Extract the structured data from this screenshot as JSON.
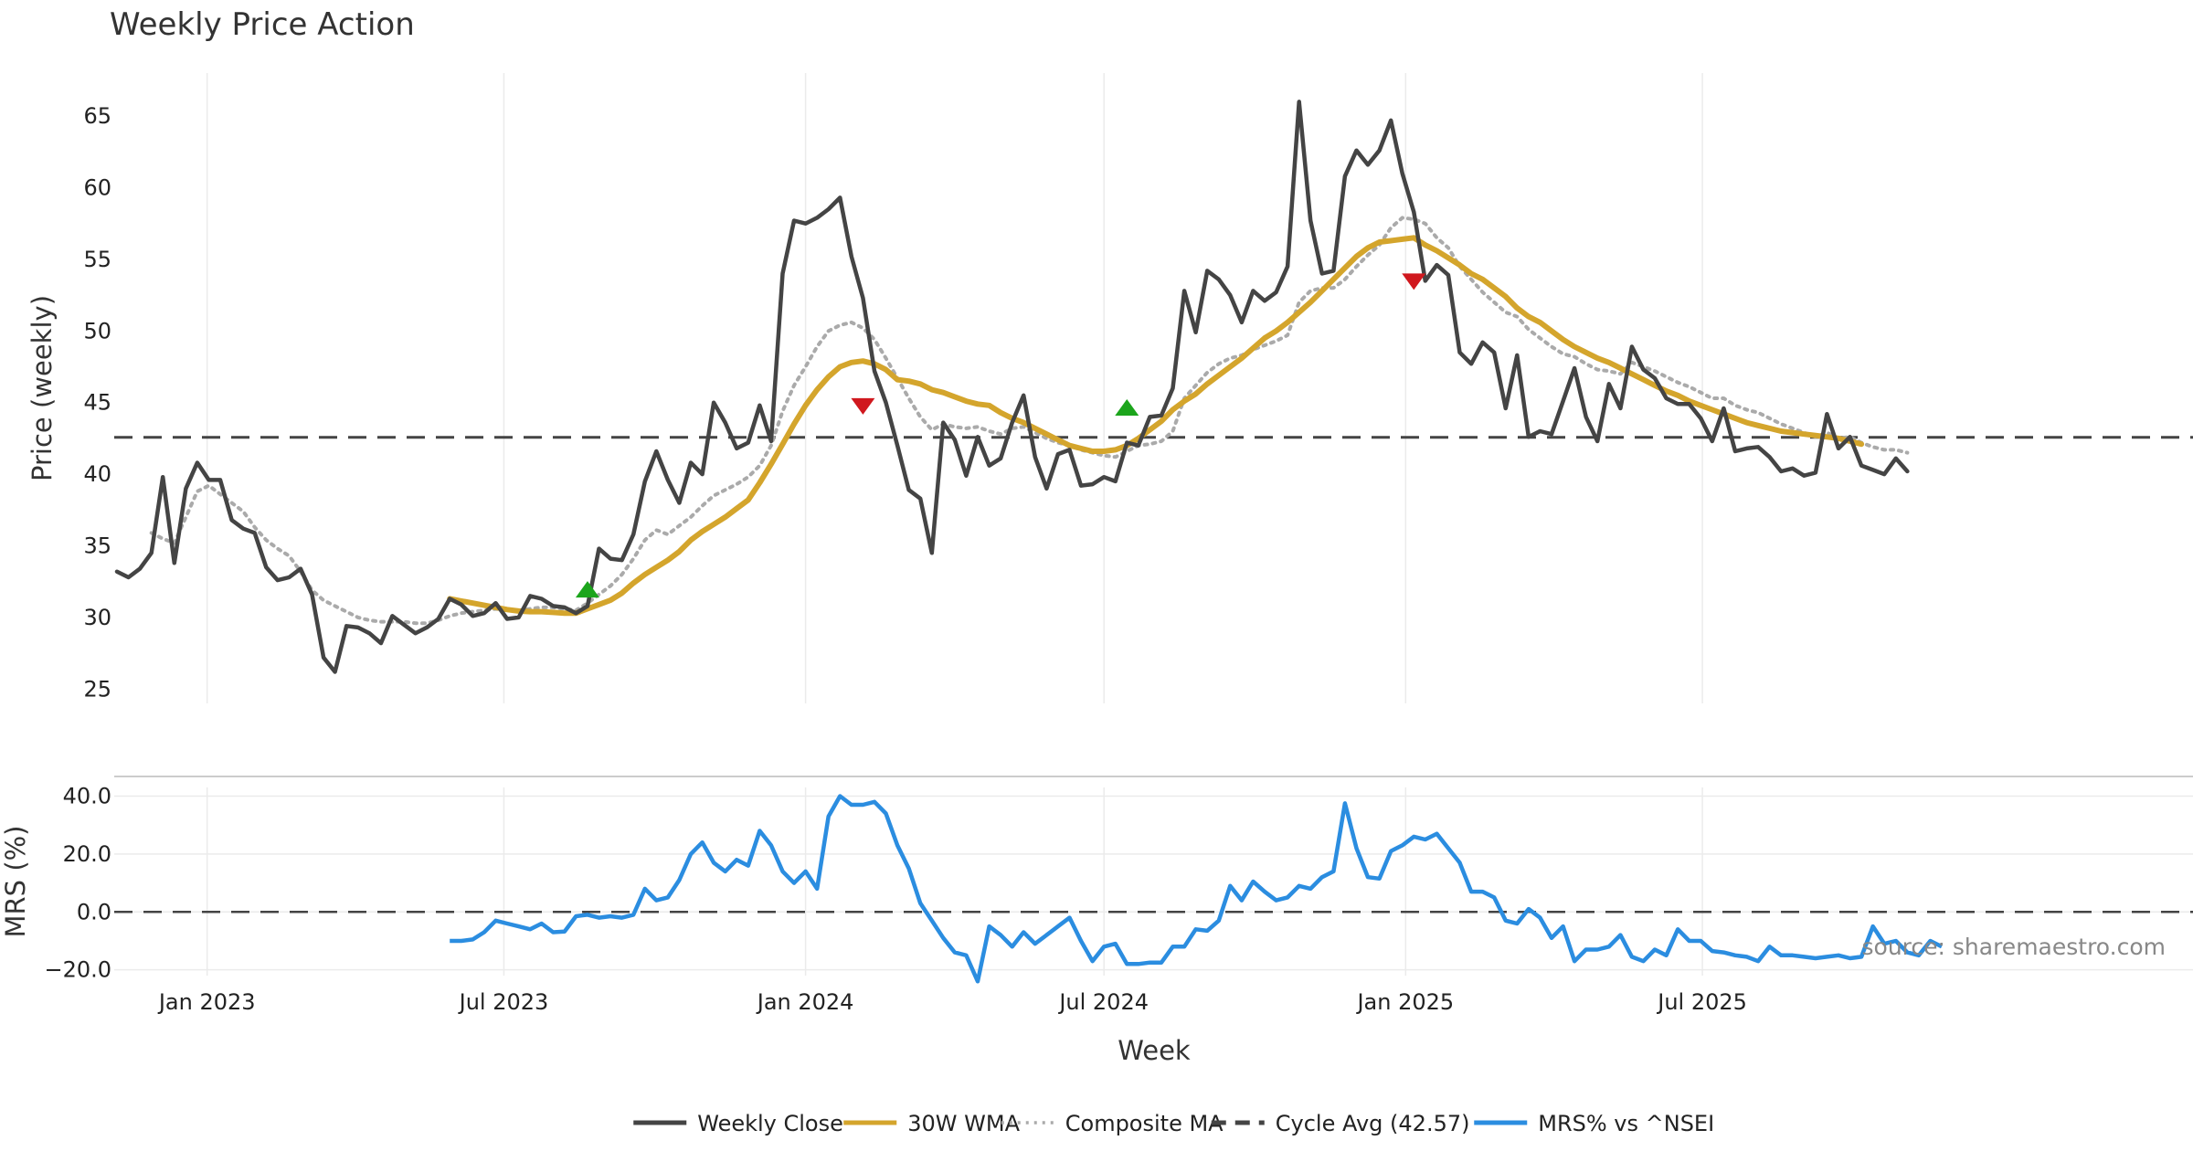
{
  "chart_data": {
    "type": "line",
    "title": "Weekly Price Action",
    "xlabel": "Week",
    "source_text": "source: sharemaestro.com",
    "x_ticks": [
      "Jan 2023",
      "Jul 2023",
      "Jan 2024",
      "Jul 2024",
      "Jan 2025",
      "Jul 2025"
    ],
    "x_start": "2022-11-07",
    "x_step_days": 7,
    "price_panel": {
      "ylabel": "Price (weekly)",
      "ylim": [
        24,
        68
      ],
      "yticks": [
        25,
        30,
        35,
        40,
        45,
        50,
        55,
        60,
        65
      ],
      "cycle_avg": 42.57,
      "series": [
        {
          "name": "Weekly Close",
          "color": "#444444",
          "style": "solid",
          "values": [
            33.2,
            32.8,
            33.4,
            34.5,
            39.8,
            33.8,
            39.0,
            40.8,
            39.6,
            39.6,
            36.8,
            36.2,
            35.9,
            33.5,
            32.6,
            32.8,
            33.4,
            31.6,
            27.2,
            26.2,
            29.4,
            29.3,
            28.9,
            28.2,
            30.1,
            29.5,
            28.9,
            29.3,
            29.9,
            31.3,
            30.9,
            30.1,
            30.3,
            31.0,
            29.9,
            30.0,
            31.5,
            31.3,
            30.8,
            30.7,
            30.3,
            30.8,
            34.8,
            34.1,
            34.0,
            35.8,
            39.5,
            41.6,
            39.6,
            38.0,
            40.8,
            40.0,
            45.0,
            43.6,
            41.8,
            42.2,
            44.8,
            42.3,
            54.0,
            57.7,
            57.5,
            57.9,
            58.5,
            59.3,
            55.2,
            52.3,
            47.2,
            45.0,
            42.0,
            38.9,
            38.3,
            34.5,
            43.6,
            42.4,
            39.9,
            42.6,
            40.6,
            41.1,
            43.6,
            45.5,
            41.2,
            39.0,
            41.4,
            41.7,
            39.2,
            39.3,
            39.8,
            39.5,
            42.2,
            42.0,
            44.0,
            44.1,
            46.0,
            52.8,
            49.9,
            54.2,
            53.6,
            52.5,
            50.6,
            52.8,
            52.1,
            52.7,
            54.5,
            66.0,
            57.7,
            54.0,
            54.2,
            60.8,
            62.6,
            61.6,
            62.6,
            64.7,
            61.0,
            58.3,
            53.5,
            54.6,
            53.9,
            48.5,
            47.7,
            49.2,
            48.5,
            44.6,
            48.3,
            42.6,
            43.0,
            42.8,
            45.1,
            47.4,
            44.0,
            42.3,
            46.3,
            44.6,
            48.9,
            47.3,
            46.7,
            45.3,
            44.9,
            44.9,
            43.9,
            42.3,
            44.6,
            41.6,
            41.8,
            41.9,
            41.2,
            40.2,
            40.4,
            39.9,
            40.1,
            44.2,
            41.8,
            42.6,
            40.6,
            40.3,
            40.0,
            41.1,
            40.2
          ]
        },
        {
          "name": "30W WMA",
          "color": "#d4a52c",
          "style": "solid",
          "values": [
            null,
            null,
            null,
            null,
            null,
            null,
            null,
            null,
            null,
            null,
            null,
            null,
            null,
            null,
            null,
            null,
            null,
            null,
            null,
            null,
            null,
            null,
            null,
            null,
            null,
            null,
            null,
            null,
            null,
            31.3,
            31.15,
            31.0,
            30.85,
            30.7,
            30.55,
            30.45,
            30.4,
            30.4,
            30.35,
            30.3,
            30.3,
            30.6,
            30.9,
            31.2,
            31.7,
            32.4,
            33.0,
            33.5,
            34.0,
            34.6,
            35.4,
            36.0,
            36.5,
            37.0,
            37.6,
            38.2,
            39.4,
            40.7,
            42.1,
            43.5,
            44.8,
            45.9,
            46.8,
            47.5,
            47.8,
            47.9,
            47.7,
            47.3,
            46.6,
            46.5,
            46.3,
            45.9,
            45.7,
            45.4,
            45.1,
            44.9,
            44.8,
            44.3,
            43.9,
            43.6,
            43.2,
            42.8,
            42.4,
            42.0,
            41.8,
            41.6,
            41.6,
            41.7,
            42.0,
            42.5,
            43.1,
            43.7,
            44.5,
            45.1,
            45.6,
            46.3,
            46.9,
            47.5,
            48.1,
            48.8,
            49.5,
            50.0,
            50.6,
            51.3,
            52.0,
            52.8,
            53.6,
            54.4,
            55.2,
            55.8,
            56.2,
            56.3,
            56.4,
            56.5,
            56.0,
            55.6,
            55.1,
            54.6,
            54.0,
            53.6,
            53.0,
            52.4,
            51.6,
            51.0,
            50.6,
            50.0,
            49.4,
            48.9,
            48.5,
            48.1,
            47.8,
            47.4,
            47.0,
            46.6,
            46.2,
            45.8,
            45.5,
            45.1,
            44.8,
            44.5,
            44.2,
            43.9,
            43.6,
            43.4,
            43.2,
            43.0,
            42.9,
            42.8,
            42.7,
            42.6,
            42.5,
            42.3,
            42.1
          ]
        },
        {
          "name": "Composite MA",
          "color": "#aaaaaa",
          "style": "dotted",
          "values": [
            null,
            null,
            null,
            35.9,
            35.5,
            35.2,
            37.0,
            38.8,
            39.2,
            38.6,
            38.0,
            37.4,
            36.3,
            35.4,
            34.8,
            34.3,
            33.2,
            31.9,
            31.2,
            30.8,
            30.4,
            30.0,
            29.8,
            29.7,
            29.7,
            29.7,
            29.6,
            29.6,
            29.8,
            30.1,
            30.3,
            30.4,
            30.5,
            30.6,
            30.5,
            30.5,
            30.6,
            30.7,
            30.7,
            30.6,
            30.5,
            31.0,
            31.6,
            32.2,
            33.0,
            34.1,
            35.4,
            36.1,
            35.8,
            36.4,
            37.0,
            37.8,
            38.5,
            38.9,
            39.3,
            39.8,
            40.6,
            42.0,
            44.4,
            46.2,
            47.5,
            48.9,
            50.0,
            50.4,
            50.6,
            50.2,
            49.4,
            48.1,
            46.7,
            45.3,
            44.0,
            43.1,
            43.5,
            43.3,
            43.2,
            43.3,
            43.0,
            42.8,
            43.2,
            43.3,
            42.9,
            42.5,
            42.2,
            42.0,
            41.7,
            41.5,
            41.3,
            41.2,
            41.6,
            42.0,
            42.1,
            42.3,
            43.0,
            45.3,
            46.2,
            47.1,
            47.7,
            48.1,
            48.3,
            48.7,
            49.0,
            49.3,
            49.7,
            52.0,
            52.8,
            53.0,
            53.0,
            53.6,
            54.5,
            55.3,
            56.0,
            57.2,
            57.9,
            57.8,
            57.5,
            56.5,
            55.8,
            54.5,
            53.6,
            52.7,
            52.0,
            51.3,
            51.0,
            50.1,
            49.5,
            48.9,
            48.4,
            48.2,
            47.7,
            47.3,
            47.2,
            47.0,
            47.8,
            47.5,
            47.2,
            46.8,
            46.4,
            46.1,
            45.7,
            45.3,
            45.3,
            44.8,
            44.5,
            44.3,
            43.9,
            43.5,
            43.2,
            42.9,
            42.6,
            42.9,
            42.5,
            42.6,
            42.2,
            41.9,
            41.7,
            41.7,
            41.5
          ]
        }
      ],
      "cycle_avg_series": {
        "name": "Cycle Avg (42.57)",
        "color": "#444444",
        "style": "dashed"
      },
      "markers": [
        {
          "type": "buy",
          "index": 41,
          "y": 31.9,
          "color": "#1ca51c"
        },
        {
          "type": "sell",
          "index": 65,
          "y": 44.8,
          "color": "#d0181e"
        },
        {
          "type": "buy",
          "index": 88,
          "y": 44.6,
          "color": "#1ca51c"
        },
        {
          "type": "sell",
          "index": 113,
          "y": 53.5,
          "color": "#d0181e"
        }
      ]
    },
    "mrs_panel": {
      "ylabel": "MRS (%)",
      "ylim": [
        -22,
        43
      ],
      "yticks": [
        {
          "value": 40,
          "label": "40.0"
        },
        {
          "value": 20,
          "label": "20.0"
        },
        {
          "value": 0,
          "label": "0.0"
        },
        {
          "value": -20,
          "label": "−20.0"
        }
      ],
      "zero_line": 0,
      "series": [
        {
          "name": "MRS% vs ^NSEI",
          "color": "#2b8de0",
          "style": "solid",
          "values": [
            null,
            null,
            null,
            null,
            null,
            null,
            null,
            null,
            null,
            null,
            null,
            null,
            null,
            null,
            null,
            null,
            null,
            null,
            null,
            null,
            null,
            null,
            null,
            null,
            null,
            null,
            null,
            null,
            null,
            -10.0,
            -10.0,
            -9.5,
            -7.0,
            -3.0,
            -4.0,
            -5.0,
            -6.0,
            -4.0,
            -7.0,
            -6.8,
            -1.5,
            -1.0,
            -2.0,
            -1.5,
            -2.0,
            -1.0,
            8.0,
            4.0,
            5.0,
            11.0,
            20.0,
            24.0,
            17.0,
            14.0,
            18.0,
            16.0,
            28.0,
            23.0,
            14.0,
            10.0,
            14.0,
            8.0,
            33.0,
            40.0,
            37.0,
            37.0,
            38.0,
            34.0,
            23.0,
            15.0,
            3.0,
            -3.0,
            -9.0,
            -14.0,
            -15.0,
            -24.0,
            -5.0,
            -8.0,
            -12.0,
            -7.0,
            -11.0,
            -8.0,
            -5.0,
            -2.0,
            -10.0,
            -17.0,
            -12.0,
            -11.0,
            -18.0,
            -18.0,
            -17.5,
            -17.5,
            -12.0,
            -12.0,
            -6.0,
            -6.5,
            -3.0,
            9.0,
            4.0,
            10.5,
            7.0,
            4.0,
            5.0,
            9.0,
            8.0,
            12.0,
            14.0,
            37.5,
            22.0,
            12.0,
            11.5,
            21.0,
            23.0,
            26.0,
            25.0,
            27.0,
            22.0,
            17.0,
            7.0,
            7.0,
            5.0,
            -3.0,
            -4.0,
            1.0,
            -2.0,
            -9.0,
            -5.0,
            -17.0,
            -13.0,
            -13.0,
            -12.0,
            -8.0,
            -15.5,
            -17.0,
            -13.0,
            -15.0,
            -6.0,
            -10.0,
            -10.0,
            -13.5,
            -14.0,
            -15.0,
            -15.5,
            -17.0,
            -12.0,
            -15.0,
            -15.0,
            -15.5,
            -16.0,
            -15.5,
            -15.0,
            -16.0,
            -15.5,
            -5.0,
            -11.0,
            -10.0,
            -14.0,
            -15.0,
            -10.0,
            -12.0
          ]
        }
      ]
    },
    "legend": {
      "placement": "bottom-center",
      "items": [
        {
          "label": "Weekly Close",
          "color": "#444444",
          "style": "solid"
        },
        {
          "label": "30W WMA",
          "color": "#d4a52c",
          "style": "solid"
        },
        {
          "label": "Composite MA",
          "color": "#aaaaaa",
          "style": "dotted"
        },
        {
          "label": "Cycle Avg (42.57)",
          "color": "#444444",
          "style": "dashed"
        },
        {
          "label": "MRS% vs ^NSEI",
          "color": "#2b8de0",
          "style": "solid"
        }
      ]
    },
    "grid": true
  }
}
